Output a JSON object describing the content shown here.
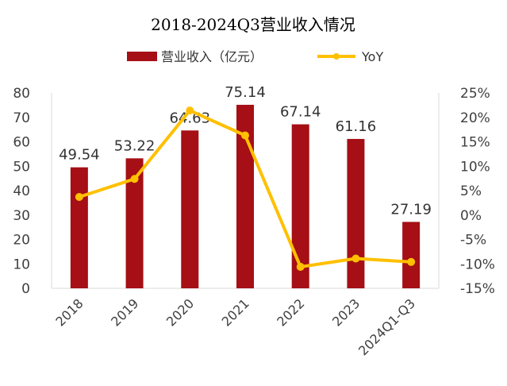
{
  "chart_data": {
    "type": "bar",
    "title": "2018-2024Q3营业收入情况",
    "categories": [
      "2018",
      "2019",
      "2020",
      "2021",
      "2022",
      "2023",
      "2024Q1-Q3"
    ],
    "series": [
      {
        "name": "营业收入（亿元）",
        "type": "bar",
        "axis": "left",
        "color": "#A50F15",
        "values": [
          49.54,
          53.22,
          64.63,
          75.14,
          67.14,
          61.16,
          27.19
        ],
        "labels": [
          "49.54",
          "53.22",
          "64.63",
          "75.14",
          "67.14",
          "61.16",
          "27.19"
        ]
      },
      {
        "name": "YoY",
        "type": "line",
        "axis": "right",
        "color": "#FFC000",
        "values": [
          3.7,
          7.4,
          21.4,
          16.3,
          -10.6,
          -8.9,
          -9.6
        ]
      }
    ],
    "y_left": {
      "min": 0,
      "max": 80,
      "step": 10,
      "ticks": [
        "0",
        "10",
        "20",
        "30",
        "40",
        "50",
        "60",
        "70",
        "80"
      ]
    },
    "y_right": {
      "min": -15,
      "max": 25,
      "step": 5,
      "ticks": [
        "-15%",
        "-10%",
        "-5%",
        "0%",
        "5%",
        "10%",
        "15%",
        "20%",
        "25%"
      ]
    },
    "xlabel": "",
    "ylabel": "",
    "legend_position": "top-center",
    "grid": false
  }
}
